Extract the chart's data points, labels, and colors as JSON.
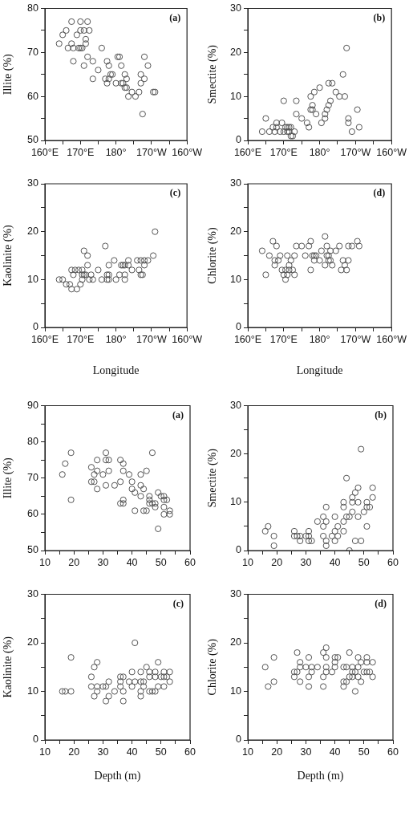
{
  "chart_data": [
    {
      "type": "scatter",
      "ylabel": "Illite (%)",
      "annotations": [
        "(a)"
      ],
      "marker": "circle",
      "grid": false,
      "legend": false,
      "xlim": [
        160,
        200
      ],
      "xticks": [
        {
          "value": 160,
          "label": "160°E"
        },
        {
          "value": 165,
          "label": null
        },
        {
          "value": 170,
          "label": "170°E"
        },
        {
          "value": 175,
          "label": null
        },
        {
          "value": 180,
          "label": "180°"
        },
        {
          "value": 185,
          "label": null
        },
        {
          "value": 190,
          "label": "170°W"
        },
        {
          "value": 195,
          "label": null
        },
        {
          "value": 200,
          "label": "160°W"
        }
      ],
      "ylim": [
        50,
        80
      ],
      "yticks": [
        50,
        {
          "value": 55,
          "label": null
        },
        60,
        {
          "value": 65,
          "label": null
        },
        70,
        {
          "value": 75,
          "label": null
        },
        80
      ],
      "series": [
        {
          "color": "#555555",
          "x": [
            164,
            165,
            166,
            167.5,
            170,
            172,
            169,
            170,
            171,
            172.5,
            171.5,
            167.5,
            171.5,
            166.5,
            168,
            169.5,
            170,
            170.5,
            176,
            172,
            180.5,
            181,
            188,
            168,
            173.5,
            177.5,
            171,
            178,
            181.5,
            189,
            175,
            173.5,
            177,
            178,
            178.5,
            179,
            182.5,
            187,
            183,
            188,
            177.5,
            180,
            181.5,
            182,
            187,
            182.5,
            183,
            184.5,
            186.5,
            190.5,
            191,
            183.5,
            185.5,
            187.5
          ],
          "values": [
            72,
            74,
            75,
            77,
            77,
            77,
            74,
            75,
            75,
            75,
            73,
            72,
            72,
            71,
            71,
            71,
            71,
            71,
            71,
            69,
            69,
            69,
            69,
            68,
            68,
            68,
            67,
            67,
            67,
            67,
            66,
            64,
            64,
            64,
            65,
            65,
            65,
            65,
            64,
            64,
            63,
            63,
            63,
            63,
            63,
            62,
            62,
            61,
            61,
            61,
            61,
            60,
            60,
            56
          ]
        }
      ]
    },
    {
      "type": "scatter",
      "ylabel": "Smectite (%)",
      "annotations": [
        "(b)"
      ],
      "marker": "circle",
      "grid": false,
      "legend": false,
      "xlim": [
        160,
        200
      ],
      "xticks": [
        {
          "value": 160,
          "label": "160°E"
        },
        {
          "value": 165,
          "label": null
        },
        {
          "value": 170,
          "label": "170°E"
        },
        {
          "value": 175,
          "label": null
        },
        {
          "value": 180,
          "label": "180°"
        },
        {
          "value": 185,
          "label": null
        },
        {
          "value": 190,
          "label": "170°W"
        },
        {
          "value": 195,
          "label": null
        },
        {
          "value": 200,
          "label": "160°W"
        }
      ],
      "ylim": [
        0,
        30
      ],
      "yticks": [
        0,
        {
          "value": 5,
          "label": null
        },
        10,
        {
          "value": 15,
          "label": null
        },
        20,
        {
          "value": 25,
          "label": null
        },
        30
      ],
      "series": [
        {
          "color": "#555555",
          "x": [
            164,
            165,
            166,
            167,
            167.5,
            168,
            168,
            169,
            169.5,
            170,
            170,
            170.5,
            171,
            171.5,
            172,
            171,
            171.5,
            172,
            172.5,
            173,
            173.5,
            173.5,
            175,
            176.5,
            177,
            177.5,
            178,
            178,
            177.5,
            178.5,
            179,
            180,
            180.5,
            181.5,
            181.5,
            182,
            182.5,
            183,
            182.5,
            183.5,
            184.5,
            185.5,
            187,
            186.5,
            187.5,
            188,
            188,
            189,
            190.5,
            191
          ],
          "values": [
            2,
            5,
            2,
            3,
            2,
            4,
            3,
            2,
            4,
            9,
            2,
            3,
            3,
            3,
            3,
            2,
            2,
            1,
            1,
            2,
            6,
            9,
            5,
            4,
            3,
            7,
            7,
            8,
            10,
            11,
            6,
            12,
            4,
            5,
            6,
            7,
            8,
            9,
            13,
            13,
            11,
            10,
            10,
            15,
            21,
            5,
            4,
            2,
            7,
            3
          ]
        }
      ]
    },
    {
      "type": "scatter",
      "ylabel": "Kaolinite (%)",
      "xlabel": "Longitude",
      "annotations": [
        "(c)"
      ],
      "marker": "circle",
      "grid": false,
      "legend": false,
      "xlim": [
        160,
        200
      ],
      "xticks": [
        {
          "value": 160,
          "label": "160°E"
        },
        {
          "value": 165,
          "label": null
        },
        {
          "value": 170,
          "label": "170°E"
        },
        {
          "value": 175,
          "label": null
        },
        {
          "value": 180,
          "label": "180°"
        },
        {
          "value": 185,
          "label": null
        },
        {
          "value": 190,
          "label": "170°W"
        },
        {
          "value": 195,
          "label": null
        },
        {
          "value": 200,
          "label": "160°W"
        }
      ],
      "ylim": [
        0,
        30
      ],
      "yticks": [
        0,
        {
          "value": 5,
          "label": null
        },
        10,
        {
          "value": 15,
          "label": null
        },
        20,
        {
          "value": 25,
          "label": null
        },
        30
      ],
      "series": [
        {
          "color": "#555555",
          "x": [
            164,
            165,
            166,
            167,
            167.5,
            169,
            167.5,
            168.5,
            168,
            169.5,
            170.5,
            170,
            170.5,
            171,
            170.5,
            171,
            171.5,
            172,
            172,
            172.5,
            173,
            173.5,
            175,
            176,
            177,
            177.5,
            178,
            178,
            177.5,
            178,
            179.5,
            180,
            181,
            181.5,
            182,
            182.5,
            182.5,
            182.5,
            183.5,
            183.5,
            184.5,
            186,
            186.5,
            187,
            187,
            187.5,
            188,
            188,
            189,
            190.5,
            191
          ],
          "values": [
            10,
            10,
            9,
            9,
            8,
            8,
            12,
            12,
            11,
            12,
            12,
            9,
            10,
            16,
            11,
            11,
            11,
            13,
            15,
            10,
            11,
            10,
            12,
            10,
            17,
            11,
            11,
            13,
            10,
            10,
            14,
            10,
            11,
            13,
            13,
            11,
            10,
            13,
            13,
            14,
            12,
            14,
            12,
            14,
            11,
            11,
            14,
            13,
            14,
            15,
            20
          ]
        }
      ]
    },
    {
      "type": "scatter",
      "ylabel": "Chlorite (%)",
      "xlabel": "Longitude",
      "annotations": [
        "(d)"
      ],
      "marker": "circle",
      "grid": false,
      "legend": false,
      "xlim": [
        160,
        200
      ],
      "xticks": [
        {
          "value": 160,
          "label": "160°E"
        },
        {
          "value": 165,
          "label": null
        },
        {
          "value": 170,
          "label": "170°E"
        },
        {
          "value": 175,
          "label": null
        },
        {
          "value": 180,
          "label": "180°"
        },
        {
          "value": 185,
          "label": null
        },
        {
          "value": 190,
          "label": "170°W"
        },
        {
          "value": 195,
          "label": null
        },
        {
          "value": 200,
          "label": "160°W"
        }
      ],
      "ylim": [
        0,
        30
      ],
      "yticks": [
        0,
        {
          "value": 5,
          "label": null
        },
        10,
        {
          "value": 15,
          "label": null
        },
        20,
        {
          "value": 25,
          "label": null
        },
        30
      ],
      "series": [
        {
          "color": "#555555",
          "x": [
            164,
            165,
            166,
            167,
            167.5,
            167.5,
            168,
            168.5,
            169,
            169.5,
            170,
            170.5,
            170.5,
            171,
            171,
            171.5,
            172,
            171.5,
            172.5,
            173,
            173,
            173.5,
            175,
            176,
            177,
            177.5,
            177.5,
            178,
            178.5,
            178.5,
            179,
            180,
            180.5,
            181.5,
            181.5,
            182,
            182,
            182.5,
            182.5,
            183,
            183,
            183.5,
            184.5,
            185.5,
            186,
            186.5,
            187,
            187.5,
            188,
            188,
            189,
            190.5,
            191
          ],
          "values": [
            16,
            11,
            15,
            18,
            14,
            13,
            17,
            14,
            15,
            12,
            11,
            10,
            12,
            15,
            11,
            13,
            14,
            12,
            12,
            11,
            15,
            17,
            17,
            15,
            17,
            18,
            12,
            15,
            15,
            14,
            15,
            14,
            16,
            13,
            19,
            17,
            15,
            15,
            14,
            16,
            14,
            13,
            16,
            17,
            12,
            14,
            13,
            12,
            17,
            14,
            17,
            18,
            17
          ]
        }
      ]
    },
    {
      "type": "scatter",
      "ylabel": "Illite (%)",
      "annotations": [
        "(a)"
      ],
      "marker": "circle",
      "grid": false,
      "legend": false,
      "xlim": [
        10,
        60
      ],
      "xticks": [
        10,
        {
          "value": 15,
          "label": null
        },
        20,
        {
          "value": 25,
          "label": null
        },
        30,
        {
          "value": 35,
          "label": null
        },
        40,
        {
          "value": 45,
          "label": null
        },
        50,
        {
          "value": 55,
          "label": null
        },
        60
      ],
      "ylim": [
        50,
        90
      ],
      "yticks": [
        50,
        {
          "value": 55,
          "label": null
        },
        60,
        {
          "value": 65,
          "label": null
        },
        70,
        {
          "value": 75,
          "label": null
        },
        80,
        {
          "value": 85,
          "label": null
        },
        90
      ],
      "series": [
        {
          "color": "#555555",
          "x": [
            16,
            17,
            19,
            19,
            26,
            26,
            27,
            27,
            28,
            28,
            28,
            30,
            31,
            31,
            32,
            31,
            32,
            34,
            36,
            37,
            37,
            36,
            36,
            37,
            37,
            39,
            40,
            40,
            41,
            41,
            43,
            45,
            43,
            44,
            43,
            44,
            45,
            47,
            46,
            46,
            46,
            47,
            48,
            48,
            49,
            50,
            51,
            51,
            52,
            51,
            51,
            53,
            53,
            49
          ],
          "values": [
            71,
            74,
            77,
            64,
            73,
            69,
            71,
            69,
            75,
            72,
            67,
            71,
            77,
            75,
            75,
            68,
            72,
            68,
            75,
            74,
            72,
            69,
            63,
            64,
            63,
            71,
            69,
            67,
            66,
            61,
            71,
            72,
            68,
            67,
            65,
            61,
            61,
            77,
            65,
            64,
            63,
            63,
            63,
            62,
            66,
            65,
            65,
            64,
            64,
            62,
            60,
            61,
            60,
            56
          ]
        }
      ]
    },
    {
      "type": "scatter",
      "ylabel": "Smectite (%)",
      "annotations": [
        "(b)"
      ],
      "marker": "circle",
      "grid": false,
      "legend": false,
      "xlim": [
        10,
        60
      ],
      "xticks": [
        10,
        {
          "value": 15,
          "label": null
        },
        20,
        {
          "value": 25,
          "label": null
        },
        30,
        {
          "value": 35,
          "label": null
        },
        40,
        {
          "value": 45,
          "label": null
        },
        50,
        {
          "value": 55,
          "label": null
        },
        60
      ],
      "ylim": [
        0,
        30
      ],
      "yticks": [
        0,
        {
          "value": 5,
          "label": null
        },
        10,
        {
          "value": 15,
          "label": null
        },
        20,
        {
          "value": 25,
          "label": null
        },
        30
      ],
      "series": [
        {
          "color": "#555555",
          "x": [
            16,
            17,
            19,
            19,
            26,
            26,
            27,
            28,
            28,
            30,
            31,
            31,
            31,
            32,
            34,
            36,
            36,
            36,
            37,
            37,
            37,
            37,
            39,
            40,
            40,
            40,
            41,
            41,
            43,
            43,
            43,
            43,
            44,
            44,
            45,
            45,
            46,
            46,
            46,
            47,
            47,
            48,
            48,
            48,
            49,
            49,
            50,
            51,
            51,
            51,
            52,
            53,
            53
          ],
          "values": [
            4,
            5,
            3,
            1,
            4,
            3,
            3,
            3,
            2,
            3,
            4,
            3,
            2,
            2,
            6,
            7,
            5,
            3,
            6,
            9,
            2,
            1,
            3,
            7,
            4,
            2,
            5,
            3,
            10,
            9,
            6,
            4,
            15,
            7,
            7,
            0,
            11,
            10,
            8,
            12,
            2,
            13,
            10,
            7,
            21,
            2,
            8,
            10,
            9,
            5,
            9,
            13,
            11
          ]
        }
      ]
    },
    {
      "type": "scatter",
      "ylabel": "Kaolinite (%)",
      "xlabel": "Depth (m)",
      "annotations": [
        "(c)"
      ],
      "marker": "circle",
      "grid": false,
      "legend": false,
      "xlim": [
        10,
        60
      ],
      "xticks": [
        10,
        {
          "value": 15,
          "label": null
        },
        20,
        {
          "value": 25,
          "label": null
        },
        30,
        {
          "value": 35,
          "label": null
        },
        40,
        {
          "value": 45,
          "label": null
        },
        50,
        {
          "value": 55,
          "label": null
        },
        60
      ],
      "ylim": [
        0,
        30
      ],
      "yticks": [
        0,
        {
          "value": 5,
          "label": null
        },
        10,
        {
          "value": 15,
          "label": null
        },
        20,
        {
          "value": 25,
          "label": null
        },
        30
      ],
      "series": [
        {
          "color": "#555555",
          "x": [
            16,
            17,
            19,
            19,
            26,
            26,
            27,
            27,
            28,
            28,
            28,
            30,
            31,
            31,
            32,
            32,
            34,
            36,
            36,
            36,
            37,
            37,
            37,
            39,
            40,
            40,
            41,
            41,
            43,
            43,
            43,
            43,
            44,
            44,
            45,
            46,
            46,
            46,
            47,
            48,
            48,
            48,
            49,
            49,
            50,
            51,
            51,
            51,
            52,
            53,
            53
          ],
          "values": [
            10,
            10,
            10,
            17,
            13,
            11,
            15,
            9,
            16,
            11,
            10,
            11,
            11,
            8,
            12,
            9,
            10,
            13,
            12,
            11,
            13,
            10,
            8,
            12,
            14,
            11,
            20,
            12,
            14,
            12,
            10,
            9,
            12,
            11,
            15,
            14,
            13,
            10,
            10,
            14,
            13,
            10,
            16,
            11,
            13,
            14,
            13,
            11,
            13,
            14,
            12
          ]
        }
      ]
    },
    {
      "type": "scatter",
      "ylabel": "Chlorite (%)",
      "xlabel": "Depth (m)",
      "annotations": [
        "(d)"
      ],
      "marker": "circle",
      "grid": false,
      "legend": false,
      "xlim": [
        10,
        60
      ],
      "xticks": [
        10,
        {
          "value": 15,
          "label": null
        },
        20,
        {
          "value": 25,
          "label": null
        },
        30,
        {
          "value": 35,
          "label": null
        },
        40,
        {
          "value": 45,
          "label": null
        },
        50,
        {
          "value": 55,
          "label": null
        },
        60
      ],
      "ylim": [
        0,
        30
      ],
      "yticks": [
        0,
        {
          "value": 5,
          "label": null
        },
        10,
        {
          "value": 15,
          "label": null
        },
        20,
        {
          "value": 25,
          "label": null
        },
        30
      ],
      "series": [
        {
          "color": "#555555",
          "x": [
            16,
            17,
            19,
            19,
            26,
            26,
            27,
            27,
            28,
            28,
            28,
            30,
            31,
            31,
            31,
            32,
            32,
            34,
            36,
            36,
            36,
            37,
            37,
            37,
            37,
            39,
            40,
            40,
            40,
            41,
            43,
            43,
            43,
            44,
            44,
            45,
            45,
            46,
            46,
            46,
            47,
            47,
            48,
            48,
            48,
            49,
            49,
            50,
            51,
            51,
            51,
            52,
            53,
            53
          ],
          "values": [
            15,
            11,
            17,
            12,
            14,
            13,
            18,
            14,
            16,
            15,
            12,
            15,
            17,
            13,
            11,
            15,
            14,
            15,
            18,
            13,
            11,
            19,
            17,
            15,
            14,
            14,
            17,
            16,
            15,
            17,
            15,
            12,
            11,
            15,
            12,
            18,
            13,
            15,
            14,
            13,
            14,
            10,
            17,
            15,
            13,
            16,
            12,
            14,
            17,
            16,
            14,
            14,
            16,
            13
          ]
        }
      ]
    }
  ]
}
